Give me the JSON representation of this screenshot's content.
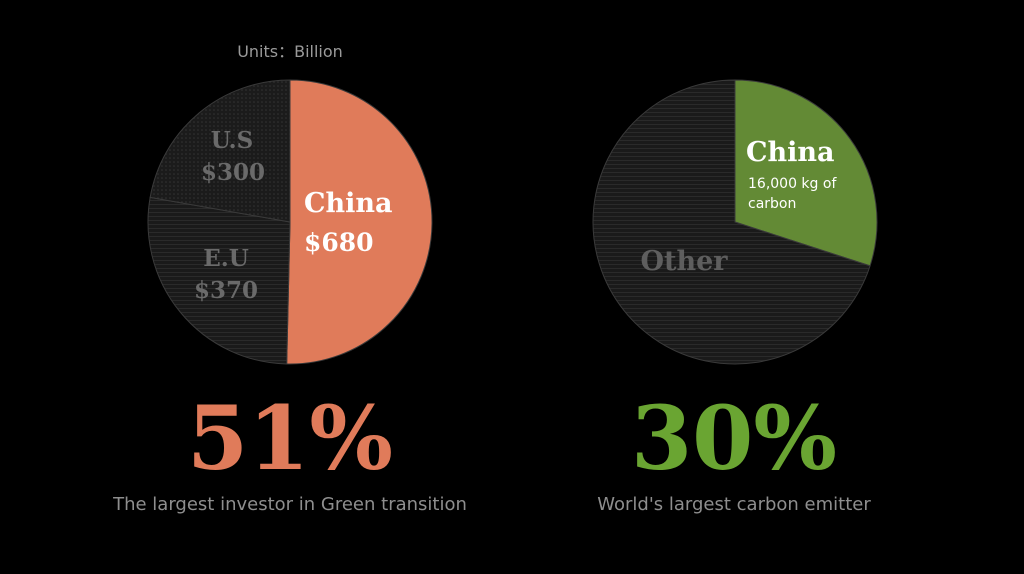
{
  "colors": {
    "china_investment": "#e07b5a",
    "china_emitter": "#638a35",
    "dark_slice": "#1c1c1c",
    "dim_label": "#6a6a6a",
    "pct_left": "#e07b5a",
    "pct_right": "#6aa532"
  },
  "chart_data": [
    {
      "type": "pie",
      "subtitle": "Units：Billion",
      "slices": [
        {
          "name": "China",
          "value": 680,
          "label_name": "China",
          "label_value": "$680"
        },
        {
          "name": "E.U",
          "value": 370,
          "label_name": "E.U",
          "label_value": "$370"
        },
        {
          "name": "U.S",
          "value": 300,
          "label_name": "U.S",
          "label_value": "$300"
        }
      ],
      "headline": "51%",
      "caption": "The largest investor in Green transition"
    },
    {
      "type": "pie",
      "slices": [
        {
          "name": "China",
          "value": 30,
          "label_name": "China",
          "label_detail_1": "16,000 kg of",
          "label_detail_2": "carbon"
        },
        {
          "name": "Other",
          "value": 70,
          "label_name": "Other"
        }
      ],
      "headline": "30%",
      "caption": "World's largest carbon emitter"
    }
  ]
}
